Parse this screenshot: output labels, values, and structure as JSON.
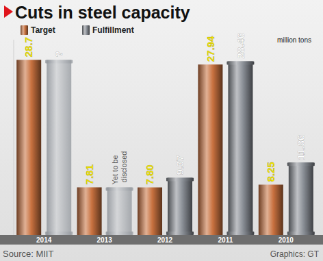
{
  "chart_data": {
    "type": "bar",
    "title": "Cuts in steel capacity",
    "unit": "million tons",
    "source": "Source: MIIT",
    "credit": "Graphics: GT",
    "categories": [
      "2014",
      "2013",
      "2012",
      "2011",
      "2010"
    ],
    "series": [
      {
        "name": "Target",
        "color": "#c8713f",
        "values": [
          28.7,
          7.81,
          7.8,
          27.94,
          8.25
        ],
        "value_labels": [
          "28.7",
          "7.81",
          "7.80",
          "27.94",
          "8.25"
        ]
      },
      {
        "name": "Fulfillment",
        "color": "#8a8f96",
        "values": [
          null,
          null,
          9.37,
          28.46,
          11.86
        ],
        "value_labels": [
          "?",
          "Yet to be disclosed",
          "9.37",
          "28.46",
          "11.86"
        ]
      }
    ],
    "ylim": [
      0,
      32
    ],
    "yticks": [],
    "tick_labels": "x",
    "data_labels": true,
    "legend": "top-left"
  }
}
